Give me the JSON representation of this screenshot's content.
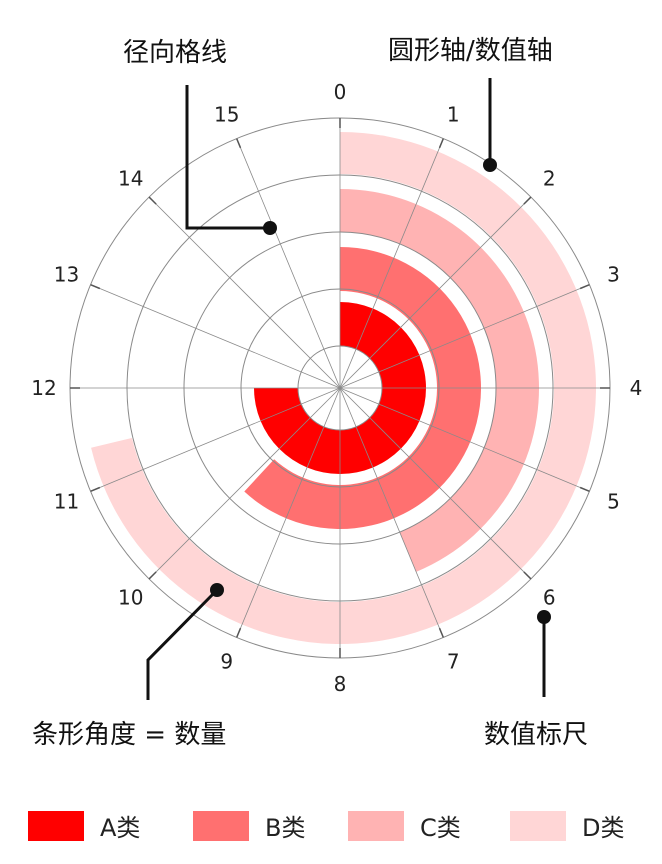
{
  "annotations": {
    "gridlines": "径向格线",
    "axis": "圆形轴/数值轴",
    "bar_angle": "条形角度 = 数量",
    "scale": "数值标尺"
  },
  "chart_data": {
    "type": "radial-bar",
    "angular_axis": {
      "min": 0,
      "max": 16,
      "ticks": [
        "0",
        "1",
        "2",
        "3",
        "4",
        "5",
        "6",
        "7",
        "8",
        "9",
        "10",
        "11",
        "12",
        "13",
        "14",
        "15"
      ],
      "direction": "clockwise",
      "start": "top"
    },
    "grid": true,
    "series": [
      {
        "name": "A类",
        "value": 12,
        "color": "#ff0000"
      },
      {
        "name": "B类",
        "value": 9.9,
        "color": "#ff7070"
      },
      {
        "name": "C类",
        "value": 7,
        "color": "#ffb3b3"
      },
      {
        "name": "D类",
        "value": 11.4,
        "color": "#ffd6d6"
      }
    ],
    "legend_position": "bottom"
  },
  "colors": {
    "grid": "#8a8a8a",
    "annotation": "#111111"
  }
}
